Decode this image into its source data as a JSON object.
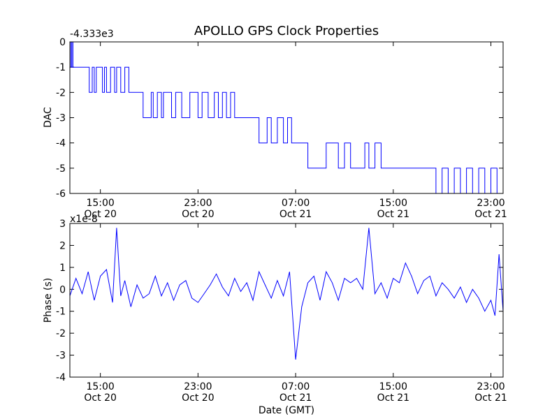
{
  "figure": {
    "title": "APOLLO GPS Clock Properties",
    "xlabel": "Date (GMT)"
  },
  "chart_data": [
    {
      "type": "line",
      "ylabel": "DAC",
      "offset_label": "-4.333e3",
      "ylim": [
        -6,
        0
      ],
      "yticks": [
        "0",
        "-1",
        "-2",
        "-3",
        "-4",
        "-5",
        "-6"
      ],
      "xlim": [
        "2012-10-20 12:30",
        "2012-10-22 00:00"
      ],
      "xticks": [
        {
          "time": "15:00",
          "date": "Oct 20"
        },
        {
          "time": "23:00",
          "date": "Oct 20"
        },
        {
          "time": "07:00",
          "date": "Oct 21"
        },
        {
          "time": "15:00",
          "date": "Oct 21"
        },
        {
          "time": "23:00",
          "date": "Oct 21"
        }
      ],
      "line_color": "#0000ff",
      "series": [
        {
          "x": [
            "2012-10-20 12:30",
            "2012-10-20 12:35",
            "2012-10-20 12:40",
            "2012-10-20 12:45",
            "2012-10-20 13:20",
            "2012-10-20 14:05",
            "2012-10-20 14:20",
            "2012-10-20 14:30",
            "2012-10-20 14:40",
            "2012-10-20 15:10",
            "2012-10-20 15:20",
            "2012-10-20 15:30",
            "2012-10-20 15:50",
            "2012-10-20 16:10",
            "2012-10-20 16:20",
            "2012-10-20 16:40",
            "2012-10-20 17:00",
            "2012-10-20 17:20",
            "2012-10-20 17:40",
            "2012-10-20 18:30",
            "2012-10-20 19:10",
            "2012-10-20 19:20",
            "2012-10-20 19:40",
            "2012-10-20 20:00",
            "2012-10-20 20:10",
            "2012-10-20 20:50",
            "2012-10-20 21:10",
            "2012-10-20 21:40",
            "2012-10-20 22:20",
            "2012-10-20 23:00",
            "2012-10-20 23:20",
            "2012-10-20 23:50",
            "2012-10-21 00:20",
            "2012-10-21 00:40",
            "2012-10-21 01:00",
            "2012-10-21 01:20",
            "2012-10-21 01:40",
            "2012-10-21 02:00",
            "2012-10-21 02:40",
            "2012-10-21 04:00",
            "2012-10-21 04:40",
            "2012-10-21 05:00",
            "2012-10-21 05:30",
            "2012-10-21 06:00",
            "2012-10-21 06:20",
            "2012-10-21 06:40",
            "2012-10-21 07:30",
            "2012-10-21 08:00",
            "2012-10-21 09:30",
            "2012-10-21 10:30",
            "2012-10-21 11:00",
            "2012-10-21 11:30",
            "2012-10-21 12:40",
            "2012-10-21 13:00",
            "2012-10-21 13:30",
            "2012-10-21 14:00",
            "2012-10-21 14:30",
            "2012-10-21 15:00",
            "2012-10-21 16:00",
            "2012-10-21 18:30",
            "2012-10-21 19:00",
            "2012-10-21 19:30",
            "2012-10-21 20:00",
            "2012-10-21 20:30",
            "2012-10-21 21:00",
            "2012-10-21 21:30",
            "2012-10-21 22:00",
            "2012-10-21 22:30",
            "2012-10-21 23:00",
            "2012-10-21 23:30",
            "2012-10-22 00:00"
          ],
          "y": [
            0,
            -1,
            0,
            -1,
            -1,
            -2,
            -1,
            -2,
            -1,
            -2,
            -1,
            -2,
            -1,
            -2,
            -1,
            -2,
            -1,
            -2,
            -2,
            -3,
            -2,
            -3,
            -2,
            -3,
            -2,
            -3,
            -2,
            -3,
            -2,
            -3,
            -2,
            -3,
            -2,
            -3,
            -2,
            -3,
            -2,
            -3,
            -3,
            -4,
            -3,
            -4,
            -3,
            -4,
            -3,
            -4,
            -4,
            -5,
            -4,
            -5,
            -4,
            -5,
            -4,
            -5,
            -4,
            -5,
            -5,
            -5,
            -5,
            -6,
            -5,
            -6,
            -5,
            -6,
            -5,
            -6,
            -5,
            -6,
            -5,
            -6,
            -5
          ]
        }
      ]
    },
    {
      "type": "line",
      "ylabel": "Phase (s)",
      "offset_label": "x1e-8",
      "ylim": [
        -4,
        3
      ],
      "yticks": [
        "3",
        "2",
        "1",
        "0",
        "-1",
        "-2",
        "-3",
        "-4"
      ],
      "xlim": [
        "2012-10-20 12:30",
        "2012-10-22 00:00"
      ],
      "xticks": [
        {
          "time": "15:00",
          "date": "Oct 20"
        },
        {
          "time": "23:00",
          "date": "Oct 20"
        },
        {
          "time": "07:00",
          "date": "Oct 21"
        },
        {
          "time": "15:00",
          "date": "Oct 21"
        },
        {
          "time": "23:00",
          "date": "Oct 21"
        }
      ],
      "line_color": "#0000ff",
      "series": [
        {
          "x": [
            "2012-10-20 12:30",
            "2012-10-20 13:00",
            "2012-10-20 13:30",
            "2012-10-20 14:00",
            "2012-10-20 14:30",
            "2012-10-20 15:00",
            "2012-10-20 15:30",
            "2012-10-20 16:00",
            "2012-10-20 16:20",
            "2012-10-20 16:40",
            "2012-10-20 17:00",
            "2012-10-20 17:30",
            "2012-10-20 18:00",
            "2012-10-20 18:30",
            "2012-10-20 19:00",
            "2012-10-20 19:30",
            "2012-10-20 20:00",
            "2012-10-20 20:30",
            "2012-10-20 21:00",
            "2012-10-20 21:30",
            "2012-10-20 22:00",
            "2012-10-20 22:30",
            "2012-10-20 23:00",
            "2012-10-20 23:30",
            "2012-10-21 00:00",
            "2012-10-21 00:30",
            "2012-10-21 01:00",
            "2012-10-21 01:30",
            "2012-10-21 02:00",
            "2012-10-21 02:30",
            "2012-10-21 03:00",
            "2012-10-21 03:30",
            "2012-10-21 04:00",
            "2012-10-21 04:30",
            "2012-10-21 05:00",
            "2012-10-21 05:30",
            "2012-10-21 06:00",
            "2012-10-21 06:30",
            "2012-10-21 07:00",
            "2012-10-21 07:30",
            "2012-10-21 08:00",
            "2012-10-21 08:30",
            "2012-10-21 09:00",
            "2012-10-21 09:30",
            "2012-10-21 10:00",
            "2012-10-21 10:30",
            "2012-10-21 11:00",
            "2012-10-21 11:30",
            "2012-10-21 12:00",
            "2012-10-21 12:30",
            "2012-10-21 13:00",
            "2012-10-21 13:30",
            "2012-10-21 14:00",
            "2012-10-21 14:30",
            "2012-10-21 15:00",
            "2012-10-21 15:30",
            "2012-10-21 16:00",
            "2012-10-21 16:30",
            "2012-10-21 17:00",
            "2012-10-21 17:30",
            "2012-10-21 18:00",
            "2012-10-21 18:30",
            "2012-10-21 19:00",
            "2012-10-21 19:30",
            "2012-10-21 20:00",
            "2012-10-21 20:30",
            "2012-10-21 21:00",
            "2012-10-21 21:30",
            "2012-10-21 22:00",
            "2012-10-21 22:30",
            "2012-10-21 23:00",
            "2012-10-21 23:20",
            "2012-10-21 23:40",
            "2012-10-22 00:00"
          ],
          "y": [
            -0.3,
            0.5,
            -0.2,
            0.8,
            -0.5,
            0.6,
            0.9,
            -0.6,
            2.8,
            -0.3,
            0.4,
            -0.8,
            0.2,
            -0.4,
            -0.2,
            0.6,
            -0.3,
            0.3,
            -0.5,
            0.2,
            0.4,
            -0.4,
            -0.6,
            -0.2,
            0.2,
            0.7,
            0.1,
            -0.3,
            0.5,
            -0.1,
            0.3,
            -0.5,
            0.8,
            0.2,
            -0.4,
            0.4,
            -0.3,
            0.8,
            -3.2,
            -0.8,
            0.3,
            0.6,
            -0.5,
            0.8,
            0.3,
            -0.5,
            0.5,
            0.3,
            0.5,
            0.0,
            2.8,
            -0.2,
            0.3,
            -0.4,
            0.5,
            0.3,
            1.2,
            0.6,
            -0.2,
            0.4,
            0.6,
            -0.3,
            0.3,
            0.0,
            -0.4,
            0.1,
            -0.6,
            0.0,
            -0.4,
            -1.0,
            -0.5,
            -1.2,
            1.6,
            -1.0
          ]
        }
      ]
    }
  ]
}
